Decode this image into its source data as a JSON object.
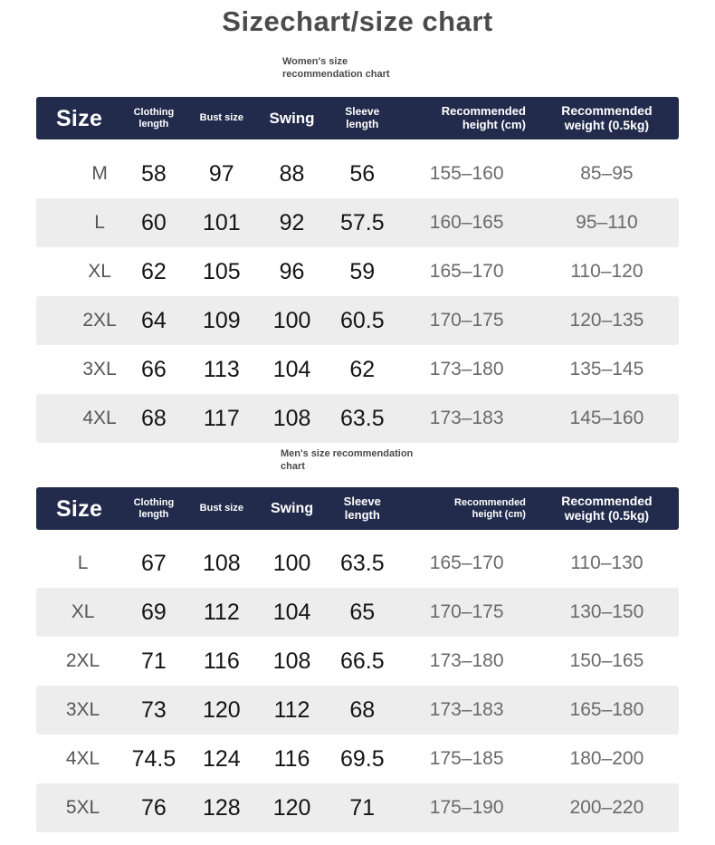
{
  "title": "Sizechart/size chart",
  "table_header": {
    "size": "Size",
    "clothing_line1": "Clothing",
    "clothing_line2": "length",
    "bust": "Bust size",
    "swing": "Swing",
    "sleeve_line1": "Sleeve",
    "sleeve_line2": "length",
    "height_line1": "Recommended",
    "height_line2": "height (cm)",
    "weight_line1": "Recommended",
    "weight_line2": "weight (0.5kg)"
  },
  "women": {
    "subtitle_line1": "Women's size",
    "subtitle_line2": "recommendation chart",
    "rows": [
      [
        "M",
        "58",
        "97",
        "88",
        "56",
        "155–160",
        "85–95"
      ],
      [
        "L",
        "60",
        "101",
        "92",
        "57.5",
        "160–165",
        "95–110"
      ],
      [
        "XL",
        "62",
        "105",
        "96",
        "59",
        "165–170",
        "110–120"
      ],
      [
        "2XL",
        "64",
        "109",
        "100",
        "60.5",
        "170–175",
        "120–135"
      ],
      [
        "3XL",
        "66",
        "113",
        "104",
        "62",
        "173–180",
        "135–145"
      ],
      [
        "4XL",
        "68",
        "117",
        "108",
        "63.5",
        "173–183",
        "145–160"
      ]
    ]
  },
  "men": {
    "subtitle_line1": "Men's size recommendation",
    "subtitle_line2": "chart",
    "rows": [
      [
        "L",
        "67",
        "108",
        "100",
        "63.5",
        "165–170",
        "110–130"
      ],
      [
        "XL",
        "69",
        "112",
        "104",
        "65",
        "170–175",
        "130–150"
      ],
      [
        "2XL",
        "71",
        "116",
        "108",
        "66.5",
        "173–180",
        "150–165"
      ],
      [
        "3XL",
        "73",
        "120",
        "112",
        "68",
        "173–183",
        "165–180"
      ],
      [
        "4XL",
        "74.5",
        "124",
        "116",
        "69.5",
        "175–185",
        "180–200"
      ],
      [
        "5XL",
        "76",
        "128",
        "120",
        "71",
        "175–190",
        "200–220"
      ]
    ]
  },
  "colors": {
    "header_bg": "#222b4c",
    "alt_row_bg": "#ededed",
    "title_text": "#4b4b4b"
  }
}
